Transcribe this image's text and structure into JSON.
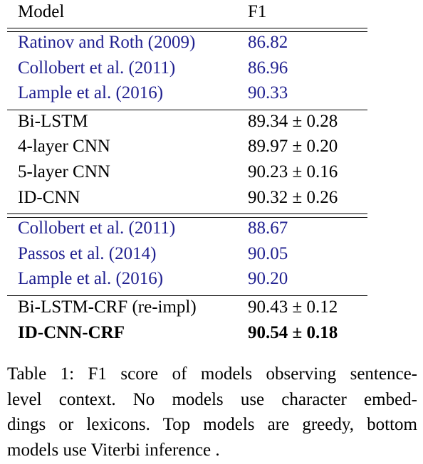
{
  "table": {
    "header": [
      "Model",
      "F1"
    ],
    "groups": [
      {
        "rows": [
          {
            "cells": [
              "Ratinov and Roth (2009)",
              "86.82"
            ],
            "color": "#1f1f8f"
          },
          {
            "cells": [
              "Collobert et al. (2011)",
              "86.96"
            ],
            "color": "#1f1f8f"
          },
          {
            "cells": [
              "Lample et al. (2016)",
              "90.33"
            ],
            "color": "#1f1f8f"
          }
        ]
      },
      {
        "rows": [
          {
            "cells": [
              "Bi-LSTM",
              "89.34 ± 0.28"
            ],
            "color": "#000000"
          },
          {
            "cells": [
              "4-layer CNN",
              "89.97 ± 0.20"
            ],
            "color": "#000000"
          },
          {
            "cells": [
              "5-layer CNN",
              "90.23 ± 0.16"
            ],
            "color": "#000000"
          },
          {
            "cells": [
              "ID-CNN",
              "90.32 ± 0.26"
            ],
            "color": "#000000"
          }
        ],
        "rule_after": "double"
      },
      {
        "rows": [
          {
            "cells": [
              "Collobert et al. (2011)",
              "88.67"
            ],
            "color": "#1f1f8f"
          },
          {
            "cells": [
              "Passos et al. (2014)",
              "90.05"
            ],
            "color": "#1f1f8f"
          },
          {
            "cells": [
              "Lample et al. (2016)",
              "90.20"
            ],
            "color": "#1f1f8f"
          }
        ]
      },
      {
        "rows": [
          {
            "cells": [
              "Bi-LSTM-CRF (re-impl)",
              "90.43 ± 0.12"
            ],
            "color": "#000000"
          },
          {
            "cells": [
              "ID-CNN-CRF",
              "90.54 ± 0.18"
            ],
            "color": "#000000",
            "bold": true
          }
        ],
        "rule_after": "none"
      }
    ]
  },
  "caption": {
    "lines": [
      "Table 1: F1 score of models observing sentence-",
      "level context.  No models use character embed-",
      "dings or lexicons. Top models are greedy, bottom",
      "models use Viterbi inference ."
    ]
  }
}
